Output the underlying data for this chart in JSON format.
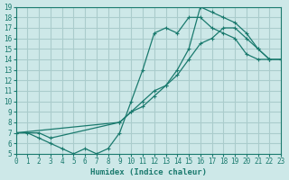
{
  "xlabel": "Humidex (Indice chaleur)",
  "bg_color": "#cde8e8",
  "grid_color": "#aacccc",
  "line_color": "#1a7a6e",
  "xlim": [
    0,
    23
  ],
  "ylim": [
    5,
    19
  ],
  "xticks": [
    0,
    1,
    2,
    3,
    4,
    5,
    6,
    7,
    8,
    9,
    10,
    11,
    12,
    13,
    14,
    15,
    16,
    17,
    18,
    19,
    20,
    21,
    22,
    23
  ],
  "yticks": [
    5,
    6,
    7,
    8,
    9,
    10,
    11,
    12,
    13,
    14,
    15,
    16,
    17,
    18,
    19
  ],
  "line1_x": [
    0,
    1,
    2,
    3,
    4,
    5,
    6,
    7,
    8,
    9,
    10,
    11,
    12,
    13,
    14,
    15,
    16,
    17,
    18,
    19,
    20,
    21,
    22
  ],
  "line1_y": [
    7,
    7,
    6.5,
    6,
    5.5,
    5,
    5.5,
    5,
    5.5,
    7,
    10,
    13,
    16.5,
    17,
    16.5,
    18,
    18,
    17,
    16.5,
    16,
    14.5,
    14,
    14
  ],
  "line2_x": [
    0,
    2,
    3,
    9,
    10,
    11,
    12,
    13,
    14,
    15,
    16,
    17,
    18,
    19,
    20,
    21,
    22,
    23
  ],
  "line2_y": [
    7,
    7,
    6.5,
    8,
    9,
    9.5,
    10.5,
    11.5,
    13,
    15,
    19,
    18.5,
    18,
    17.5,
    16.5,
    15,
    14,
    14
  ],
  "line3_x": [
    0,
    9,
    10,
    11,
    12,
    13,
    14,
    15,
    16,
    17,
    18,
    19,
    20,
    21,
    22,
    23
  ],
  "line3_y": [
    7,
    8,
    9,
    10,
    11,
    11.5,
    12.5,
    14,
    15.5,
    16,
    17,
    17,
    16,
    15,
    14,
    14
  ]
}
